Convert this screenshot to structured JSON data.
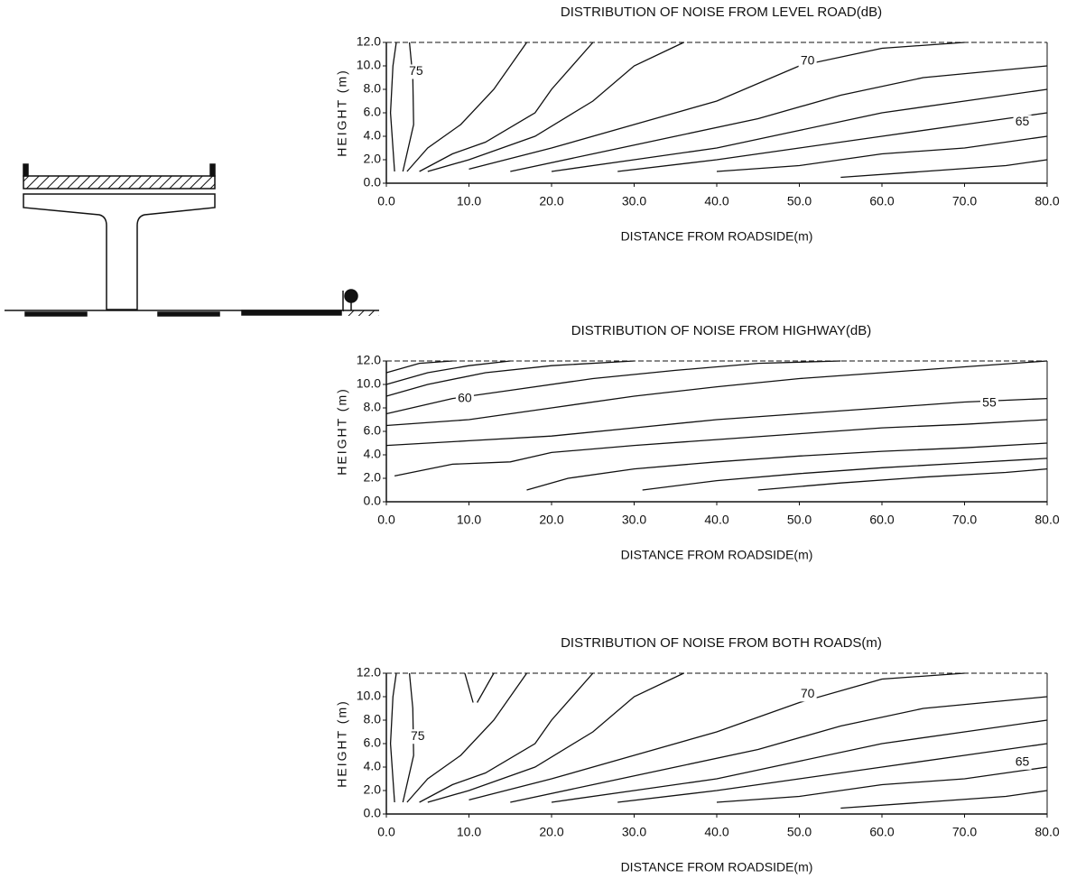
{
  "chart_data": [
    {
      "type": "contour",
      "title": "DISTRIBUTION OF NOISE FROM LEVEL ROAD(dB)",
      "xlabel": "DISTANCE FROM ROADSIDE(m)",
      "ylabel": "HEIGHT (m)",
      "xlim": [
        0,
        80
      ],
      "ylim": [
        0,
        12
      ],
      "xticks": [
        {
          "value": 0,
          "label": "0.0"
        },
        {
          "value": 10,
          "label": "10.0"
        },
        {
          "value": 20,
          "label": "20.0"
        },
        {
          "value": 30,
          "label": "30.0"
        },
        {
          "value": 40,
          "label": "40.0"
        },
        {
          "value": 50,
          "label": "50.0"
        },
        {
          "value": 60,
          "label": "60.0"
        },
        {
          "value": 70,
          "label": "70.0"
        },
        {
          "value": 80,
          "label": "80.0"
        }
      ],
      "yticks": [
        {
          "value": 0,
          "label": "0.0"
        },
        {
          "value": 2,
          "label": "2.0"
        },
        {
          "value": 4,
          "label": "4.0"
        },
        {
          "value": 6,
          "label": "6.0"
        },
        {
          "value": 8,
          "label": "8.0"
        },
        {
          "value": 10,
          "label": "10.0"
        },
        {
          "value": 12,
          "label": "12.0"
        }
      ],
      "color": "#111111",
      "contours": [
        {
          "x": [
            1,
            0.5,
            0.8,
            1.2
          ],
          "y": [
            1,
            6,
            10,
            12
          ]
        },
        {
          "x": [
            2,
            3.3,
            3.2,
            2.8
          ],
          "y": [
            1,
            5,
            9,
            12
          ]
        },
        {
          "x": [
            2.5,
            5,
            9,
            13,
            17
          ],
          "y": [
            1,
            3,
            5,
            8,
            12
          ]
        },
        {
          "x": [
            4,
            8,
            12,
            18,
            20,
            25
          ],
          "y": [
            1,
            2.5,
            3.5,
            6,
            8,
            12
          ]
        },
        {
          "x": [
            5,
            10,
            18,
            25,
            30,
            36
          ],
          "y": [
            1,
            2,
            4,
            7,
            10,
            12
          ]
        },
        {
          "x": [
            10,
            20,
            30,
            40,
            50,
            60,
            70
          ],
          "y": [
            1.2,
            3,
            5,
            7,
            10,
            11.5,
            12
          ]
        },
        {
          "x": [
            15,
            25,
            35,
            45,
            55,
            65,
            80
          ],
          "y": [
            1,
            2.5,
            4,
            5.5,
            7.5,
            9,
            10
          ]
        },
        {
          "x": [
            20,
            30,
            40,
            50,
            60,
            70,
            80
          ],
          "y": [
            1,
            2,
            3,
            4.5,
            6,
            7,
            8
          ]
        },
        {
          "x": [
            28,
            40,
            50,
            60,
            70,
            80
          ],
          "y": [
            1,
            2,
            3,
            4,
            5,
            6
          ]
        },
        {
          "x": [
            40,
            50,
            60,
            70,
            80
          ],
          "y": [
            1,
            1.5,
            2.5,
            3,
            4
          ]
        },
        {
          "x": [
            55,
            65,
            75,
            80
          ],
          "y": [
            0.5,
            1,
            1.5,
            2
          ]
        }
      ],
      "level_labels": [
        {
          "label": 75,
          "x": 3.6,
          "y": 9.5
        },
        {
          "label": 70,
          "x": 51,
          "y": 10.4
        },
        {
          "label": 65,
          "x": 77,
          "y": 5.2
        }
      ]
    },
    {
      "type": "contour",
      "title": "DISTRIBUTION OF NOISE FROM HIGHWAY(dB)",
      "xlabel": "DISTANCE FROM ROADSIDE(m)",
      "ylabel": "HEIGHT (m)",
      "xlim": [
        0,
        80
      ],
      "ylim": [
        0,
        12
      ],
      "xticks": [
        {
          "value": 0,
          "label": "0.0"
        },
        {
          "value": 10,
          "label": "10.0"
        },
        {
          "value": 20,
          "label": "20.0"
        },
        {
          "value": 30,
          "label": "30.0"
        },
        {
          "value": 40,
          "label": "40.0"
        },
        {
          "value": 50,
          "label": "50.0"
        },
        {
          "value": 60,
          "label": "60.0"
        },
        {
          "value": 70,
          "label": "70.0"
        },
        {
          "value": 80,
          "label": "80.0"
        }
      ],
      "yticks": [
        {
          "value": 0,
          "label": "0.0"
        },
        {
          "value": 2,
          "label": "2.0"
        },
        {
          "value": 4,
          "label": "4.0"
        },
        {
          "value": 6,
          "label": "6.0"
        },
        {
          "value": 8,
          "label": "8.0"
        },
        {
          "value": 10,
          "label": "10.0"
        },
        {
          "value": 12,
          "label": "12.0"
        }
      ],
      "color": "#111111",
      "contours": [
        {
          "x": [
            0,
            4,
            8
          ],
          "y": [
            11,
            11.8,
            12
          ]
        },
        {
          "x": [
            0,
            5,
            10,
            15
          ],
          "y": [
            10,
            11,
            11.6,
            12
          ]
        },
        {
          "x": [
            0,
            5,
            12,
            20,
            30
          ],
          "y": [
            9,
            10,
            11,
            11.6,
            12
          ]
        },
        {
          "x": [
            0,
            8,
            15,
            25,
            35,
            45,
            55
          ],
          "y": [
            7.5,
            8.8,
            9.5,
            10.5,
            11.2,
            11.8,
            12
          ]
        },
        {
          "x": [
            0,
            10,
            20,
            30,
            40,
            50,
            60,
            70,
            80
          ],
          "y": [
            6.5,
            7,
            8,
            9,
            9.8,
            10.5,
            11,
            11.5,
            12
          ]
        },
        {
          "x": [
            0,
            10,
            20,
            30,
            40,
            50,
            60,
            70,
            80
          ],
          "y": [
            4.8,
            5.2,
            5.6,
            6.3,
            7,
            7.5,
            8,
            8.5,
            8.8
          ]
        },
        {
          "x": [
            1,
            8,
            15,
            20,
            30,
            40,
            50,
            60,
            70,
            80
          ],
          "y": [
            2.2,
            3.2,
            3.4,
            4.2,
            4.8,
            5.3,
            5.8,
            6.3,
            6.6,
            7
          ]
        },
        {
          "x": [
            17,
            22,
            30,
            40,
            50,
            60,
            70,
            80
          ],
          "y": [
            1,
            2,
            2.8,
            3.4,
            3.9,
            4.3,
            4.6,
            5
          ]
        },
        {
          "x": [
            31,
            40,
            50,
            60,
            70,
            80
          ],
          "y": [
            1,
            1.8,
            2.4,
            2.9,
            3.3,
            3.7
          ]
        },
        {
          "x": [
            45,
            55,
            65,
            75,
            80
          ],
          "y": [
            1,
            1.6,
            2.1,
            2.5,
            2.8
          ]
        }
      ],
      "level_labels": [
        {
          "label": 60,
          "x": 9.5,
          "y": 8.8
        },
        {
          "label": 55,
          "x": 73,
          "y": 8.4
        }
      ]
    },
    {
      "type": "contour",
      "title": "DISTRIBUTION OF NOISE FROM BOTH ROADS(m)",
      "xlabel": "DISTANCE FROM ROADSIDE(m)",
      "ylabel": "HEIGHT (m)",
      "xlim": [
        0,
        80
      ],
      "ylim": [
        0,
        12
      ],
      "xticks": [
        {
          "value": 0,
          "label": "0.0"
        },
        {
          "value": 10,
          "label": "10.0"
        },
        {
          "value": 20,
          "label": "20.0"
        },
        {
          "value": 30,
          "label": "30.0"
        },
        {
          "value": 40,
          "label": "40.0"
        },
        {
          "value": 50,
          "label": "50.0"
        },
        {
          "value": 60,
          "label": "60.0"
        },
        {
          "value": 70,
          "label": "70.0"
        },
        {
          "value": 80,
          "label": "80.0"
        }
      ],
      "yticks": [
        {
          "value": 0,
          "label": "0.0"
        },
        {
          "value": 2,
          "label": "2.0"
        },
        {
          "value": 4,
          "label": "4.0"
        },
        {
          "value": 6,
          "label": "6.0"
        },
        {
          "value": 8,
          "label": "8.0"
        },
        {
          "value": 10,
          "label": "10.0"
        },
        {
          "value": 12,
          "label": "12.0"
        }
      ],
      "color": "#111111",
      "contours": [
        {
          "x": [
            1,
            0.5,
            0.8,
            1.2
          ],
          "y": [
            1,
            6,
            10,
            12
          ]
        },
        {
          "x": [
            2,
            3.3,
            3.2,
            2.8
          ],
          "y": [
            1,
            5,
            9,
            12
          ]
        },
        {
          "x": [
            9.5,
            10.5
          ],
          "y": [
            12,
            9.5
          ]
        },
        {
          "x": [
            11,
            13
          ],
          "y": [
            9.5,
            12
          ]
        },
        {
          "x": [
            2.5,
            5,
            9,
            13,
            17
          ],
          "y": [
            1,
            3,
            5,
            8,
            12
          ]
        },
        {
          "x": [
            4,
            8,
            12,
            18,
            20,
            25
          ],
          "y": [
            1,
            2.5,
            3.5,
            6,
            8,
            12
          ]
        },
        {
          "x": [
            5,
            10,
            18,
            25,
            30,
            36
          ],
          "y": [
            1,
            2,
            4,
            7,
            10,
            12
          ]
        },
        {
          "x": [
            10,
            20,
            30,
            40,
            50,
            60,
            70
          ],
          "y": [
            1.2,
            3,
            5,
            7,
            9.5,
            11.5,
            12
          ]
        },
        {
          "x": [
            15,
            25,
            35,
            45,
            55,
            65,
            80
          ],
          "y": [
            1,
            2.5,
            4,
            5.5,
            7.5,
            9,
            10
          ]
        },
        {
          "x": [
            20,
            30,
            40,
            50,
            60,
            70,
            80
          ],
          "y": [
            1,
            2,
            3,
            4.5,
            6,
            7,
            8
          ]
        },
        {
          "x": [
            28,
            40,
            50,
            60,
            70,
            80
          ],
          "y": [
            1,
            2,
            3,
            4,
            5,
            6
          ]
        },
        {
          "x": [
            40,
            50,
            60,
            70,
            80
          ],
          "y": [
            1,
            1.5,
            2.5,
            3,
            4
          ]
        },
        {
          "x": [
            55,
            65,
            75,
            80
          ],
          "y": [
            0.5,
            1,
            1.5,
            2
          ]
        }
      ],
      "level_labels": [
        {
          "label": 75,
          "x": 3.8,
          "y": 6.6
        },
        {
          "label": 70,
          "x": 51,
          "y": 10.2
        },
        {
          "label": 65,
          "x": 77,
          "y": 4.4
        }
      ]
    }
  ]
}
